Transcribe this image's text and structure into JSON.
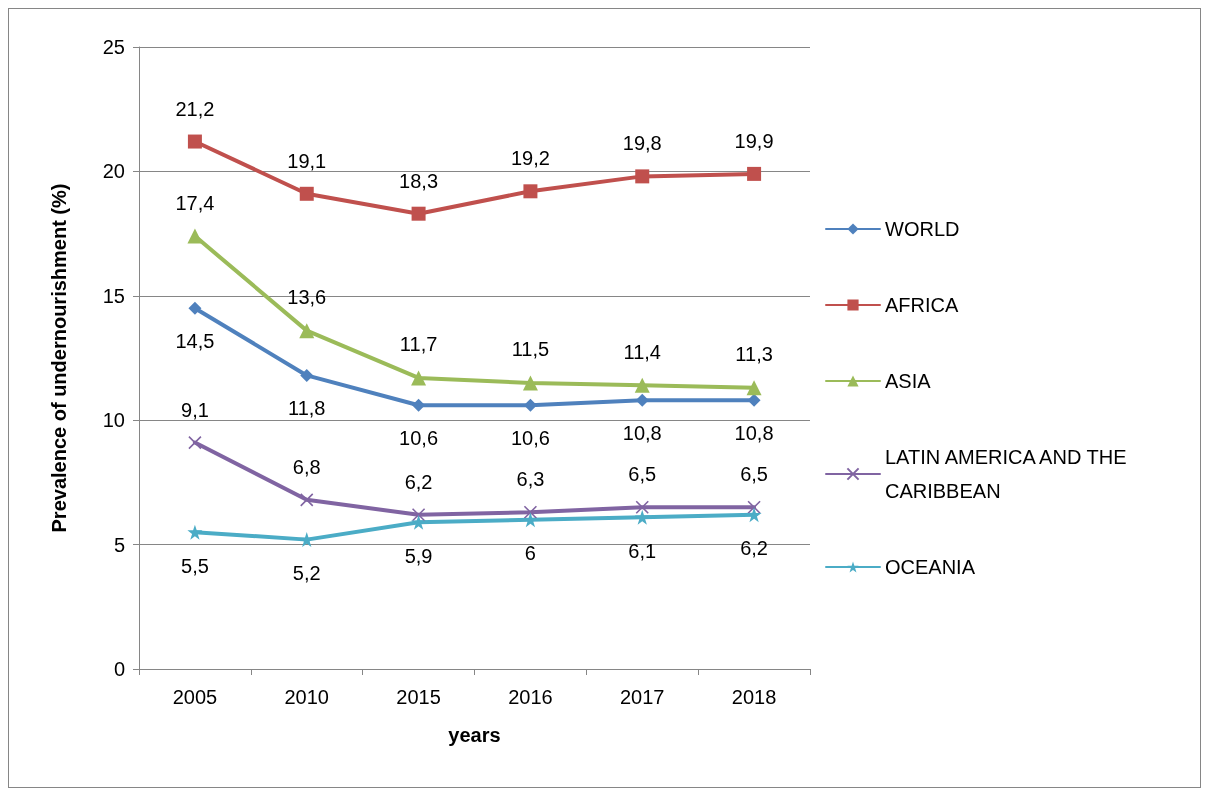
{
  "chart_data": {
    "type": "line",
    "xlabel": "years",
    "ylabel": "Prevalence of undernourishment (%)",
    "categories": [
      "2005",
      "2010",
      "2015",
      "2016",
      "2017",
      "2018"
    ],
    "series": [
      {
        "name": "WORLD",
        "color": "#4f81bd",
        "marker": "diamond",
        "values": [
          14.5,
          11.8,
          10.6,
          10.6,
          10.8,
          10.8
        ],
        "value_labels": [
          "14,5",
          "11,8",
          "10,6",
          "10,6",
          "10,8",
          "10,8"
        ]
      },
      {
        "name": "AFRICA",
        "color": "#c0504d",
        "marker": "square",
        "values": [
          21.2,
          19.1,
          18.3,
          19.2,
          19.8,
          19.9
        ],
        "value_labels": [
          "21,2",
          "19,1",
          "18,3",
          "19,2",
          "19,8",
          "19,9"
        ]
      },
      {
        "name": "ASIA",
        "color": "#9bbb59",
        "marker": "triangle",
        "values": [
          17.4,
          13.6,
          11.7,
          11.5,
          11.4,
          11.3
        ],
        "value_labels": [
          "17,4",
          "13,6",
          "11,7",
          "11,5",
          "11,4",
          "11,3"
        ]
      },
      {
        "name": "LATIN AMERICA AND THE CARIBBEAN",
        "color": "#8064a2",
        "marker": "cross",
        "values": [
          9.1,
          6.8,
          6.2,
          6.3,
          6.5,
          6.5
        ],
        "value_labels": [
          "9,1",
          "6,8",
          "6,2",
          "6,3",
          "6,5",
          "6,5"
        ]
      },
      {
        "name": "OCEANIA",
        "color": "#4bacc6",
        "marker": "star",
        "values": [
          5.5,
          5.2,
          5.9,
          6,
          6.1,
          6.2
        ],
        "value_labels": [
          "5,5",
          "5,2",
          "5,9",
          "6",
          "6,1",
          "6,2"
        ]
      }
    ],
    "ylim": [
      0,
      25
    ],
    "yticks": [
      0,
      5,
      10,
      15,
      20,
      25
    ],
    "grid": "y",
    "legend": "right",
    "line_style": "solid"
  }
}
